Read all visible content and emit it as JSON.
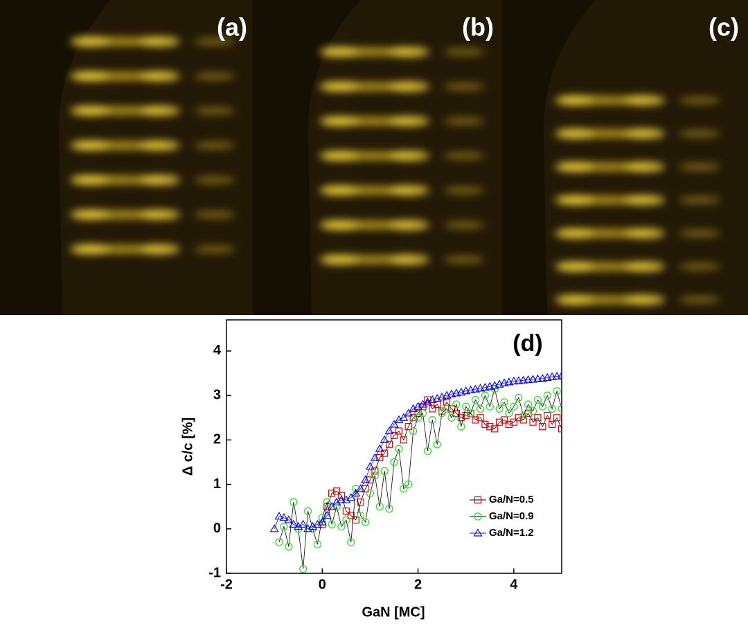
{
  "panels": [
    {
      "label": "(a)"
    },
    {
      "label": "(b)"
    },
    {
      "label": "(c)"
    }
  ],
  "chart_data": {
    "type": "scatter",
    "annotation": "(d)",
    "x_label": "GaN [MC]",
    "y_label": "Δ c/c [%]",
    "xlim": [
      -2,
      5
    ],
    "xticks": [
      -2,
      0,
      2,
      4
    ],
    "ylim": [
      -1,
      4.7
    ],
    "yticks": [
      -1,
      0,
      1,
      2,
      3,
      4
    ],
    "legend": "lower right",
    "series": [
      {
        "name": "Ga/N=0.5",
        "color": "#e8000b",
        "marker": "square",
        "line_color": "#000000",
        "x": [
          0.0,
          0.1,
          0.2,
          0.3,
          0.4,
          0.5,
          0.6,
          0.7,
          0.8,
          0.9,
          1.0,
          1.1,
          1.2,
          1.3,
          1.4,
          1.5,
          1.6,
          1.7,
          1.8,
          1.9,
          2.0,
          2.1,
          2.2,
          2.3,
          2.4,
          2.5,
          2.6,
          2.7,
          2.8,
          2.9,
          3.0,
          3.1,
          3.2,
          3.3,
          3.4,
          3.5,
          3.6,
          3.7,
          3.8,
          3.9,
          4.0,
          4.1,
          4.2,
          4.3,
          4.4,
          4.5,
          4.6,
          4.7,
          4.8,
          4.9,
          5.0
        ],
        "values": [
          0.1,
          0.5,
          0.8,
          0.85,
          0.75,
          0.4,
          0.3,
          0.2,
          0.6,
          0.9,
          1.1,
          1.3,
          1.6,
          1.7,
          1.9,
          2.1,
          2.2,
          2.0,
          2.3,
          2.5,
          2.6,
          2.75,
          2.9,
          2.7,
          2.8,
          2.65,
          2.85,
          2.7,
          2.6,
          2.5,
          2.55,
          2.6,
          2.45,
          2.5,
          2.35,
          2.3,
          2.25,
          2.4,
          2.45,
          2.35,
          2.4,
          2.5,
          2.45,
          2.6,
          2.4,
          2.5,
          2.3,
          2.55,
          2.35,
          2.5,
          2.25
        ]
      },
      {
        "name": "Ga/N=0.9",
        "color": "#22dd22",
        "marker": "circle",
        "line_color": "#000000",
        "x": [
          -0.9,
          -0.8,
          -0.7,
          -0.6,
          -0.5,
          -0.4,
          -0.3,
          -0.2,
          -0.1,
          0.0,
          0.1,
          0.2,
          0.3,
          0.4,
          0.5,
          0.6,
          0.7,
          0.8,
          0.9,
          1.0,
          1.1,
          1.2,
          1.3,
          1.4,
          1.5,
          1.6,
          1.7,
          1.8,
          1.9,
          2.0,
          2.1,
          2.2,
          2.3,
          2.4,
          2.5,
          2.6,
          2.7,
          2.8,
          2.9,
          3.0,
          3.1,
          3.2,
          3.3,
          3.4,
          3.5,
          3.6,
          3.7,
          3.8,
          3.9,
          4.0,
          4.1,
          4.2,
          4.3,
          4.4,
          4.5,
          4.6,
          4.7,
          4.8,
          4.9,
          5.0
        ],
        "values": [
          -0.3,
          0.05,
          -0.4,
          0.6,
          0.0,
          -0.9,
          0.4,
          0.0,
          -0.35,
          0.25,
          0.6,
          0.1,
          0.5,
          0.05,
          0.2,
          -0.3,
          0.9,
          0.3,
          0.15,
          0.8,
          1.2,
          0.5,
          1.3,
          0.45,
          1.5,
          1.8,
          0.9,
          1.0,
          2.2,
          2.5,
          2.6,
          1.75,
          2.45,
          1.9,
          2.6,
          2.7,
          2.5,
          2.8,
          2.3,
          2.75,
          2.6,
          2.9,
          2.7,
          3.0,
          2.75,
          3.15,
          2.7,
          2.85,
          2.6,
          2.75,
          2.95,
          2.55,
          2.8,
          2.65,
          2.9,
          2.75,
          3.0,
          2.7,
          3.1,
          2.7
        ]
      },
      {
        "name": "Ga/N=1.2",
        "color": "#1010e0",
        "marker": "triangle",
        "line_color": "#1010e0",
        "x": [
          -1.0,
          -0.9,
          -0.8,
          -0.7,
          -0.6,
          -0.5,
          -0.4,
          -0.3,
          -0.2,
          -0.1,
          0.0,
          0.1,
          0.2,
          0.3,
          0.4,
          0.5,
          0.6,
          0.7,
          0.8,
          0.9,
          1.0,
          1.1,
          1.2,
          1.3,
          1.4,
          1.5,
          1.6,
          1.7,
          1.8,
          1.9,
          2.0,
          2.1,
          2.2,
          2.3,
          2.4,
          2.5,
          2.6,
          2.7,
          2.8,
          2.9,
          3.0,
          3.1,
          3.2,
          3.3,
          3.4,
          3.5,
          3.6,
          3.7,
          3.8,
          3.9,
          4.0,
          4.1,
          4.2,
          4.3,
          4.4,
          4.5,
          4.6,
          4.7,
          4.8,
          4.9,
          5.0
        ],
        "values": [
          0,
          0.28,
          0.25,
          0.2,
          0.1,
          0.05,
          0.1,
          0.0,
          0.05,
          0.1,
          0.15,
          0.3,
          0.5,
          0.6,
          0.65,
          0.65,
          0.7,
          0.8,
          0.9,
          1.1,
          1.4,
          1.6,
          1.8,
          2.0,
          2.2,
          2.35,
          2.45,
          2.5,
          2.6,
          2.7,
          2.75,
          2.8,
          2.85,
          2.9,
          2.93,
          2.96,
          3.0,
          3.03,
          3.05,
          3.07,
          3.1,
          3.12,
          3.14,
          3.16,
          3.18,
          3.2,
          3.22,
          3.25,
          3.28,
          3.3,
          3.32,
          3.33,
          3.34,
          3.35,
          3.36,
          3.37,
          3.38,
          3.4,
          3.42,
          3.43,
          3.44
        ]
      }
    ]
  }
}
